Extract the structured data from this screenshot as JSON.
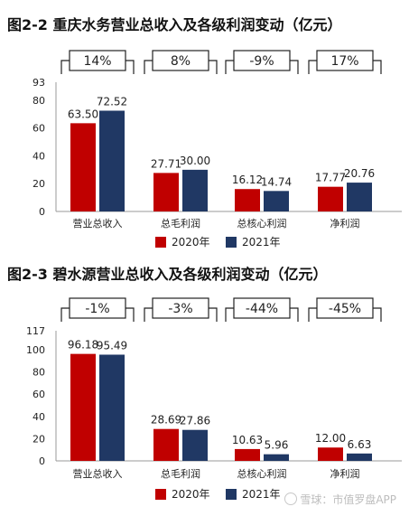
{
  "chart_data": [
    {
      "type": "bar",
      "title": "图2-2 重庆水务营业总收入及各级利润变动（亿元）",
      "categories": [
        "营业总收入",
        "总毛利润",
        "总核心利润",
        "净利润"
      ],
      "series": [
        {
          "name": "2020年",
          "values": [
            63.5,
            27.71,
            16.12,
            17.77
          ],
          "labels": [
            "63.50",
            "27.71",
            "16.12",
            "17.77"
          ],
          "color": "#c00000"
        },
        {
          "name": "2021年",
          "values": [
            72.52,
            30.0,
            14.74,
            20.76
          ],
          "labels": [
            "72.52",
            "30.00",
            "14.74",
            "20.76"
          ],
          "color": "#203864"
        }
      ],
      "changes": [
        "14%",
        "8%",
        "-9%",
        "17%"
      ],
      "yticks": [
        "0",
        "20",
        "40",
        "60",
        "80",
        "93"
      ],
      "ylim": [
        0,
        93
      ],
      "legend": "bottom"
    },
    {
      "type": "bar",
      "title": "图2-3 碧水源营业总收入及各级利润变动（亿元）",
      "categories": [
        "营业总收入",
        "总毛利润",
        "总核心利润",
        "净利润"
      ],
      "series": [
        {
          "name": "2020年",
          "values": [
            96.18,
            28.69,
            10.63,
            12.0
          ],
          "labels": [
            "96.18",
            "28.69",
            "10.63",
            "12.00"
          ],
          "color": "#c00000"
        },
        {
          "name": "2021年",
          "values": [
            95.49,
            27.86,
            5.96,
            6.63
          ],
          "labels": [
            "95.49",
            "27.86",
            "5.96",
            "6.63"
          ],
          "color": "#203864"
        }
      ],
      "changes": [
        "-1%",
        "-3%",
        "-44%",
        "-45%"
      ],
      "yticks": [
        "0",
        "20",
        "40",
        "60",
        "80",
        "100",
        "117"
      ],
      "ylim": [
        0,
        117
      ],
      "legend": "bottom"
    }
  ],
  "watermark": "雪球：市值罗盘APP"
}
